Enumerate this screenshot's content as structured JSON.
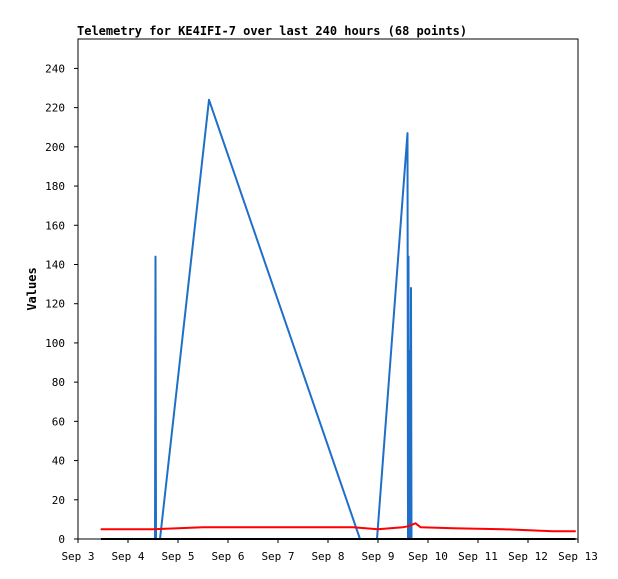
{
  "chart_data": {
    "type": "line",
    "title": "Telemetry for KE4IFI-7 over last 240 hours (68 points)",
    "xlabel": "",
    "ylabel": "Values",
    "x_ticks": [
      "Sep 3",
      "Sep 4",
      "Sep 5",
      "Sep 6",
      "Sep 7",
      "Sep 8",
      "Sep 9",
      "Sep 10",
      "Sep 11",
      "Sep 12",
      "Sep 13"
    ],
    "y_ticks": [
      "0",
      "20",
      "40",
      "60",
      "80",
      "100",
      "120",
      "140",
      "160",
      "180",
      "200",
      "220",
      "240"
    ],
    "xlim": [
      0,
      10
    ],
    "ylim": [
      0,
      255
    ],
    "grid": false,
    "legend": "none",
    "colors": {
      "series1": "#1f6fc9",
      "series2": "#ff0000",
      "series3": "#000000"
    },
    "series": [
      {
        "values": [
          [
            1.54,
            0
          ],
          [
            1.55,
            144
          ],
          [
            1.56,
            0
          ],
          [
            1.64,
            0
          ],
          [
            2.62,
            224
          ],
          [
            5.64,
            0
          ],
          [
            5.98,
            0
          ],
          [
            6.59,
            207
          ],
          [
            6.6,
            0
          ],
          [
            6.61,
            144
          ],
          [
            6.62,
            0
          ],
          [
            6.64,
            96
          ],
          [
            6.65,
            0
          ],
          [
            6.66,
            128
          ],
          [
            6.67,
            0
          ],
          [
            6.7,
            0
          ]
        ]
      },
      {
        "values": [
          [
            0.46,
            5
          ],
          [
            1.5,
            5
          ],
          [
            2.0,
            5.5
          ],
          [
            2.5,
            6
          ],
          [
            3.5,
            6
          ],
          [
            5.5,
            6
          ],
          [
            6.0,
            5
          ],
          [
            6.5,
            6
          ],
          [
            6.6,
            6.5
          ],
          [
            6.75,
            8
          ],
          [
            6.85,
            6
          ],
          [
            7.5,
            5.5
          ],
          [
            8.5,
            5
          ],
          [
            9.5,
            4
          ],
          [
            9.95,
            4
          ]
        ]
      },
      {
        "values": [
          [
            0.46,
            0
          ],
          [
            9.95,
            0
          ]
        ]
      }
    ]
  }
}
